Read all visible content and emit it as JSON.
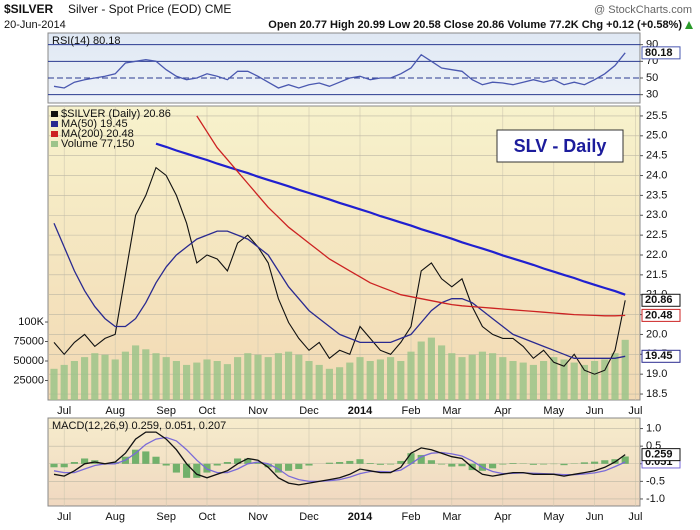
{
  "header": {
    "symbol": "$SILVER",
    "description": "Silver - Spot Price (EOD) CME",
    "date": "20-Jun-2014",
    "quote": "Open 20.77  High 20.99  Low 20.58  Close 20.86  Volume 77.2K  Chg +0.12 (+0.58%)",
    "source": "@ StockCharts.com"
  },
  "chart_data": [
    {
      "type": "line",
      "title": "RSI(14) 80.18",
      "ylim": [
        20,
        104
      ],
      "yticks": [
        90,
        70,
        50,
        30
      ],
      "series": [
        {
          "name": "RSI(14)",
          "color": "#4a58b0",
          "values": [
            40,
            38,
            45,
            48,
            50,
            52,
            55,
            68,
            70,
            72,
            70,
            60,
            52,
            48,
            50,
            55,
            52,
            48,
            58,
            58,
            52,
            45,
            38,
            42,
            38,
            42,
            44,
            40,
            45,
            50,
            52,
            48,
            50,
            50,
            55,
            62,
            78,
            70,
            62,
            60,
            58,
            48,
            42,
            45,
            44,
            42,
            45,
            48,
            45,
            48,
            42,
            45,
            42,
            48,
            55,
            65,
            80.18,
            null
          ]
        }
      ]
    },
    {
      "type": "line",
      "annotation": "SLV - Daily",
      "categories": [
        null,
        "Jul",
        null,
        null,
        null,
        null,
        "Aug",
        null,
        null,
        null,
        null,
        "Sep",
        null,
        null,
        null,
        "Oct",
        null,
        null,
        null,
        null,
        "Nov",
        null,
        null,
        null,
        null,
        "Dec",
        null,
        null,
        null,
        null,
        "2014",
        null,
        null,
        null,
        null,
        "Feb",
        null,
        null,
        null,
        "Mar",
        null,
        null,
        null,
        null,
        "Apr",
        null,
        null,
        null,
        null,
        "May",
        null,
        null,
        null,
        "Jun",
        null,
        null,
        null,
        "Jul"
      ],
      "ylim": [
        18.35,
        25.75
      ],
      "yticks": [
        25.5,
        {
          "value": 25,
          "label": "25.0"
        },
        24.5,
        {
          "value": 24,
          "label": "24.0"
        },
        23.5,
        {
          "value": 23,
          "label": "23.0"
        },
        22.5,
        {
          "value": 22,
          "label": "22.0"
        },
        21.5,
        {
          "value": 21,
          "label": "21.0"
        },
        20.5,
        {
          "value": 20,
          "label": "20.0"
        },
        19.5,
        {
          "value": 19,
          "label": "19.0"
        },
        18.5
      ],
      "y2lim": [
        0,
        377000
      ],
      "y2ticks": [
        {
          "value": 100000,
          "label": "100K"
        },
        75000,
        50000,
        25000
      ],
      "series": [
        {
          "name": "$SILVER (Daily) 20.86",
          "color": "#111111",
          "values": [
            19.8,
            19.5,
            19.8,
            20.0,
            19.7,
            19.9,
            20.0,
            21.5,
            23.0,
            23.5,
            24.2,
            24.0,
            23.5,
            22.8,
            21.8,
            22.0,
            21.9,
            21.6,
            22.3,
            22.5,
            22.2,
            21.8,
            20.9,
            20.3,
            19.9,
            19.6,
            19.8,
            19.4,
            19.6,
            19.5,
            20.2,
            19.9,
            19.6,
            19.5,
            19.8,
            20.2,
            21.6,
            21.8,
            21.4,
            21.2,
            21.4,
            20.7,
            20.2,
            20.0,
            19.9,
            19.9,
            19.7,
            19.4,
            19.6,
            19.3,
            19.2,
            19.5,
            19.1,
            19.0,
            19.1,
            19.6,
            20.86,
            null
          ]
        },
        {
          "name": "MA(50) 19.45",
          "color": "#2a2a90",
          "values": [
            22.8,
            22.2,
            21.6,
            21.1,
            20.7,
            20.4,
            20.2,
            20.2,
            20.4,
            20.8,
            21.3,
            21.7,
            22.0,
            22.2,
            22.4,
            22.5,
            22.6,
            22.6,
            22.5,
            22.4,
            22.2,
            22.0,
            21.6,
            21.2,
            20.9,
            20.6,
            20.4,
            20.2,
            20.0,
            19.9,
            19.8,
            19.8,
            19.8,
            19.8,
            19.9,
            20.0,
            20.3,
            20.6,
            20.8,
            20.9,
            20.9,
            20.8,
            20.6,
            20.4,
            20.2,
            20.0,
            19.9,
            19.8,
            19.7,
            19.6,
            19.5,
            19.4,
            19.4,
            19.4,
            19.4,
            19.4,
            19.45,
            null
          ]
        },
        {
          "name": "MA(200) 20.48",
          "color": "#cc2222",
          "values": [
            null,
            null,
            null,
            null,
            null,
            null,
            null,
            null,
            null,
            null,
            null,
            null,
            null,
            null,
            25.5,
            25.1,
            24.7,
            24.4,
            24.1,
            23.8,
            23.5,
            23.2,
            22.95,
            22.7,
            22.5,
            22.3,
            22.1,
            21.9,
            21.75,
            21.6,
            21.45,
            21.3,
            21.2,
            21.1,
            21.0,
            20.95,
            20.9,
            20.85,
            20.8,
            20.75,
            20.72,
            20.7,
            20.68,
            20.66,
            20.64,
            20.62,
            20.6,
            20.58,
            20.56,
            20.54,
            20.52,
            20.5,
            20.49,
            20.48,
            20.47,
            20.47,
            20.48,
            null
          ]
        },
        {
          "name": "Volume 77,150",
          "color": "#9cc48a",
          "type": "bar",
          "axis": "y2",
          "values": [
            40000,
            45000,
            50000,
            55000,
            60000,
            58000,
            52000,
            62000,
            70000,
            65000,
            60000,
            55000,
            50000,
            45000,
            48000,
            52000,
            50000,
            46000,
            55000,
            60000,
            58000,
            55000,
            60000,
            62000,
            58000,
            50000,
            45000,
            40000,
            42000,
            48000,
            55000,
            50000,
            52000,
            55000,
            50000,
            62000,
            75000,
            80000,
            70000,
            60000,
            55000,
            58000,
            62000,
            60000,
            55000,
            50000,
            48000,
            45000,
            50000,
            55000,
            52000,
            48000,
            45000,
            50000,
            52000,
            60000,
            77150,
            null
          ]
        }
      ],
      "trendline": {
        "color": "#2020d0",
        "values": [
          null,
          null,
          null,
          null,
          null,
          null,
          null,
          null,
          null,
          null,
          24.8,
          24.72,
          24.63,
          24.55,
          24.47,
          24.39,
          24.3,
          24.22,
          24.14,
          24.06,
          23.97,
          23.89,
          23.81,
          23.73,
          23.64,
          23.56,
          23.48,
          23.4,
          23.31,
          23.23,
          23.15,
          23.07,
          22.98,
          22.9,
          22.82,
          22.74,
          22.65,
          22.57,
          22.49,
          22.41,
          22.32,
          22.24,
          22.16,
          22.08,
          21.99,
          21.91,
          21.83,
          21.75,
          21.66,
          21.58,
          21.5,
          21.42,
          21.33,
          21.25,
          21.17,
          21.09,
          21.0,
          null
        ]
      }
    },
    {
      "type": "line",
      "title": "MACD(12,26,9) 0.259, 0.051, 0.207",
      "categories": [
        null,
        "Jul",
        null,
        null,
        null,
        null,
        "Aug",
        null,
        null,
        null,
        null,
        "Sep",
        null,
        null,
        null,
        "Oct",
        null,
        null,
        null,
        null,
        "Nov",
        null,
        null,
        null,
        null,
        "Dec",
        null,
        null,
        null,
        null,
        "2014",
        null,
        null,
        null,
        null,
        "Feb",
        null,
        null,
        null,
        "Mar",
        null,
        null,
        null,
        null,
        "Apr",
        null,
        null,
        null,
        null,
        "May",
        null,
        null,
        null,
        "Jun",
        null,
        null,
        null,
        "Jul"
      ],
      "ylim": [
        -1.2,
        1.3
      ],
      "yticks": [
        {
          "value": 1,
          "label": "1.0"
        },
        0.5,
        {
          "value": 0,
          "label": "0.0"
        },
        -0.5,
        {
          "value": -1,
          "label": "-1.0"
        }
      ],
      "series": [
        {
          "name": "Histogram",
          "color": "#5aa85a",
          "type": "bar",
          "values": [
            -0.1,
            -0.1,
            0.05,
            0.15,
            0.1,
            0,
            0.05,
            0.2,
            0.4,
            0.35,
            0.2,
            -0.05,
            -0.25,
            -0.4,
            -0.4,
            -0.25,
            -0.05,
            0.05,
            0.15,
            0.15,
            0.05,
            -0.1,
            -0.25,
            -0.2,
            -0.15,
            -0.05,
            0,
            0.03,
            0.05,
            0.08,
            0.13,
            0.02,
            -0.03,
            -0.02,
            0.08,
            0.3,
            0.25,
            0.1,
            -0.02,
            -0.08,
            -0.07,
            -0.18,
            -0.2,
            -0.13,
            -0.02,
            0.02,
            0.01,
            -0.03,
            -0.02,
            -0.01,
            -0.04,
            0.01,
            0.04,
            0.06,
            0.1,
            0.13,
            0.207,
            null
          ]
        },
        {
          "name": "Signal",
          "color": "#7a6ad8",
          "values": [
            -0.2,
            -0.25,
            -0.25,
            -0.15,
            -0.05,
            0.0,
            0.0,
            0.1,
            0.3,
            0.55,
            0.7,
            0.75,
            0.65,
            0.4,
            0.1,
            -0.15,
            -0.25,
            -0.25,
            -0.15,
            0.0,
            0.05,
            0.0,
            -0.15,
            -0.35,
            -0.45,
            -0.5,
            -0.5,
            -0.48,
            -0.45,
            -0.38,
            -0.28,
            -0.22,
            -0.22,
            -0.23,
            -0.18,
            0.0,
            0.2,
            0.3,
            0.32,
            0.28,
            0.22,
            0.08,
            -0.1,
            -0.22,
            -0.28,
            -0.27,
            -0.26,
            -0.27,
            -0.28,
            -0.29,
            -0.31,
            -0.31,
            -0.29,
            -0.26,
            -0.2,
            -0.08,
            0.051,
            null
          ]
        },
        {
          "name": "MACD",
          "color": "#111111",
          "values": [
            -0.3,
            -0.35,
            -0.2,
            0.0,
            0.05,
            0.0,
            0.05,
            0.3,
            0.7,
            0.9,
            0.9,
            0.7,
            0.4,
            0.0,
            -0.3,
            -0.4,
            -0.3,
            -0.2,
            0.0,
            0.15,
            0.1,
            -0.1,
            -0.4,
            -0.55,
            -0.6,
            -0.55,
            -0.5,
            -0.45,
            -0.4,
            -0.3,
            -0.15,
            -0.2,
            -0.25,
            -0.25,
            -0.1,
            0.3,
            0.45,
            0.4,
            0.3,
            0.2,
            0.15,
            -0.1,
            -0.3,
            -0.35,
            -0.3,
            -0.25,
            -0.25,
            -0.3,
            -0.3,
            -0.3,
            -0.35,
            -0.3,
            -0.25,
            -0.2,
            -0.1,
            0.05,
            0.259,
            null
          ]
        }
      ]
    }
  ]
}
